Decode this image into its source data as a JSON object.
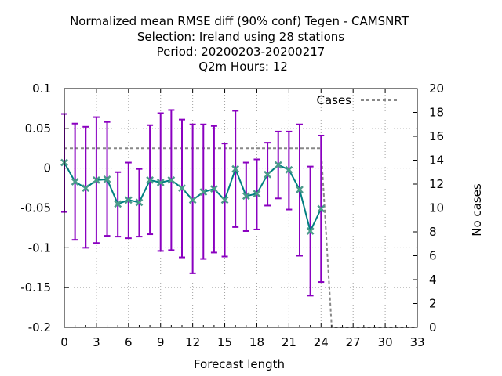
{
  "chart_data": {
    "type": "line",
    "title_lines": [
      "Normalized mean RMSE diff (90% conf) Tegen - CAMSNRT",
      "Selection: Ireland using    28 stations",
      "Period: 20200203-20200217",
      "Q2m   Hours:  12"
    ],
    "xlabel": "Forecast length",
    "ylabel": "",
    "y2label": "No cases",
    "xlim": [
      0,
      33
    ],
    "ylim": [
      -0.2,
      0.1
    ],
    "y2lim": [
      0,
      20
    ],
    "x_ticks": [
      "0",
      "3",
      "6",
      "9",
      "12",
      "15",
      "18",
      "21",
      "24",
      "27",
      "30",
      "33"
    ],
    "y_ticks": [
      "-0.2",
      "-0.15",
      "-0.1",
      "-0.05",
      "0",
      "0.05",
      "0.1"
    ],
    "y2_ticks": [
      "0",
      "2",
      "4",
      "6",
      "8",
      "10",
      "12",
      "14",
      "16",
      "18",
      "20"
    ],
    "grid": true,
    "legend": {
      "placement": "top-right",
      "entries": [
        "Cases"
      ]
    },
    "series": [
      {
        "values_role": "mean diff",
        "color": "#008080",
        "marker_color": "#4a9a8a",
        "errorbar_color": "#8a00c0",
        "x": [
          0,
          1,
          2,
          3,
          4,
          5,
          6,
          7,
          8,
          9,
          10,
          11,
          12,
          13,
          14,
          15,
          16,
          17,
          18,
          19,
          20,
          21,
          22,
          23,
          24
        ],
        "y": [
          0.007,
          -0.017,
          -0.025,
          -0.015,
          -0.014,
          -0.045,
          -0.04,
          -0.043,
          -0.015,
          -0.018,
          -0.015,
          -0.025,
          -0.04,
          -0.03,
          -0.026,
          -0.04,
          -0.001,
          -0.035,
          -0.032,
          -0.008,
          0.004,
          -0.002,
          -0.027,
          -0.079,
          -0.051
        ],
        "y_low": [
          -0.055,
          -0.09,
          -0.1,
          -0.094,
          -0.085,
          -0.086,
          -0.088,
          -0.086,
          -0.083,
          -0.104,
          -0.103,
          -0.112,
          -0.132,
          -0.114,
          -0.106,
          -0.111,
          -0.074,
          -0.079,
          -0.077,
          -0.047,
          -0.038,
          -0.052,
          -0.11,
          -0.16,
          -0.143
        ],
        "y_high": [
          0.068,
          0.056,
          0.052,
          0.064,
          0.058,
          -0.005,
          0.007,
          -0.001,
          0.054,
          0.069,
          0.073,
          0.061,
          0.055,
          0.055,
          0.053,
          0.031,
          0.072,
          0.007,
          0.011,
          0.032,
          0.046,
          0.046,
          0.055,
          0.002,
          0.041
        ]
      },
      {
        "name": "Cases",
        "axis": "y2",
        "color": "#888888",
        "dash": true,
        "x": [
          0,
          1,
          2,
          3,
          4,
          5,
          6,
          7,
          8,
          9,
          10,
          11,
          12,
          13,
          14,
          15,
          16,
          17,
          18,
          19,
          20,
          21,
          22,
          23,
          24,
          25,
          26,
          27,
          28,
          29,
          30,
          31,
          32,
          33
        ],
        "y": [
          15,
          15,
          15,
          15,
          15,
          15,
          15,
          15,
          15,
          15,
          15,
          15,
          15,
          15,
          15,
          15,
          15,
          15,
          15,
          15,
          15,
          15,
          15,
          15,
          15,
          0,
          0,
          0,
          0,
          0,
          0,
          0,
          0,
          0
        ]
      }
    ]
  }
}
